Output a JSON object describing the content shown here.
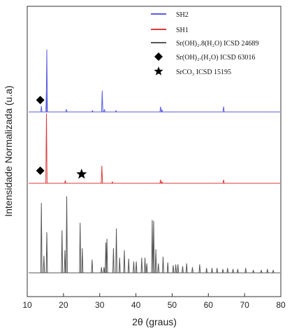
{
  "chart_data": {
    "type": "line",
    "xlabel": "2θ (graus)",
    "ylabel": "Intensidade Normalizada (u.a)",
    "xlim": [
      10,
      80
    ],
    "x_ticks": [
      10,
      20,
      30,
      40,
      50,
      60,
      70,
      80
    ],
    "grid": false,
    "legend_position": "top-right",
    "legend": [
      {
        "label": "SH2",
        "marker": "line",
        "color": "#5a5ce0"
      },
      {
        "label": "SH1",
        "marker": "line",
        "color": "#e03a3a"
      },
      {
        "label": "Sr(OH)₂.8(H₂O) ICSD 24689",
        "marker": "line",
        "color": "#555555"
      },
      {
        "label": "Sr(OH)₂.(H₂O) ICSD 63016",
        "marker": "diamond",
        "color": "#000000"
      },
      {
        "label": "SrCO₃ ICSD 15195",
        "marker": "star",
        "color": "#000000"
      }
    ],
    "series": [
      {
        "name": "SH2",
        "color": "#5a5ce0",
        "peaks": [
          [
            13.9,
            0.09
          ],
          [
            15.3,
            0.31
          ],
          [
            15.4,
            0.94
          ],
          [
            20.8,
            0.04
          ],
          [
            28.0,
            0.02
          ],
          [
            30.7,
            0.32
          ],
          [
            31.3,
            0.04
          ],
          [
            34.5,
            0.02
          ],
          [
            46.8,
            0.08
          ],
          [
            47.2,
            0.03
          ],
          [
            64.2,
            0.08
          ]
        ]
      },
      {
        "name": "SH1",
        "color": "#e03a3a",
        "peaks": [
          [
            15.3,
            1.0
          ],
          [
            20.5,
            0.04
          ],
          [
            30.6,
            0.25
          ],
          [
            33.5,
            0.02
          ],
          [
            46.8,
            0.05
          ],
          [
            47.2,
            0.02
          ],
          [
            64.2,
            0.05
          ]
        ]
      },
      {
        "name": "Sr(OH)₂.8(H₂O) ICSD 24689",
        "color": "#555555",
        "peaks": [
          [
            13.9,
            0.74
          ],
          [
            14.6,
            0.18
          ],
          [
            15.4,
            0.43
          ],
          [
            19.6,
            0.45
          ],
          [
            20.4,
            0.24
          ],
          [
            20.9,
            0.81
          ],
          [
            24.6,
            0.53
          ],
          [
            25.2,
            0.26
          ],
          [
            27.9,
            0.14
          ],
          [
            30.5,
            0.06
          ],
          [
            31.2,
            0.06
          ],
          [
            31.7,
            0.32
          ],
          [
            32.0,
            0.36
          ],
          [
            33.8,
            0.26
          ],
          [
            34.6,
            0.47
          ],
          [
            35.5,
            0.16
          ],
          [
            36.8,
            0.24
          ],
          [
            38.0,
            0.15
          ],
          [
            39.4,
            0.12
          ],
          [
            40.1,
            0.12
          ],
          [
            41.6,
            0.16
          ],
          [
            42.5,
            0.16
          ],
          [
            43.0,
            0.1
          ],
          [
            44.5,
            0.56
          ],
          [
            44.9,
            0.55
          ],
          [
            45.5,
            0.25
          ],
          [
            46.2,
            0.1
          ],
          [
            47.5,
            0.17
          ],
          [
            48.8,
            0.11
          ],
          [
            50.3,
            0.08
          ],
          [
            51.0,
            0.09
          ],
          [
            51.6,
            0.09
          ],
          [
            52.9,
            0.07
          ],
          [
            54.0,
            0.1
          ],
          [
            55.6,
            0.06
          ],
          [
            57.6,
            0.09
          ],
          [
            59.5,
            0.05
          ],
          [
            61.0,
            0.05
          ],
          [
            62.4,
            0.05
          ],
          [
            64.0,
            0.04
          ],
          [
            65.3,
            0.05
          ],
          [
            66.8,
            0.04
          ],
          [
            68.1,
            0.04
          ],
          [
            70.3,
            0.05
          ],
          [
            72.4,
            0.03
          ],
          [
            74.6,
            0.03
          ],
          [
            76.3,
            0.04
          ],
          [
            77.9,
            0.03
          ]
        ]
      }
    ],
    "markers": [
      {
        "series": "SH2",
        "symbol": "diamond",
        "x": 13.6
      },
      {
        "series": "SH1",
        "symbol": "diamond",
        "x": 13.6
      },
      {
        "series": "SH1",
        "symbol": "star",
        "x": 25.0
      }
    ]
  }
}
